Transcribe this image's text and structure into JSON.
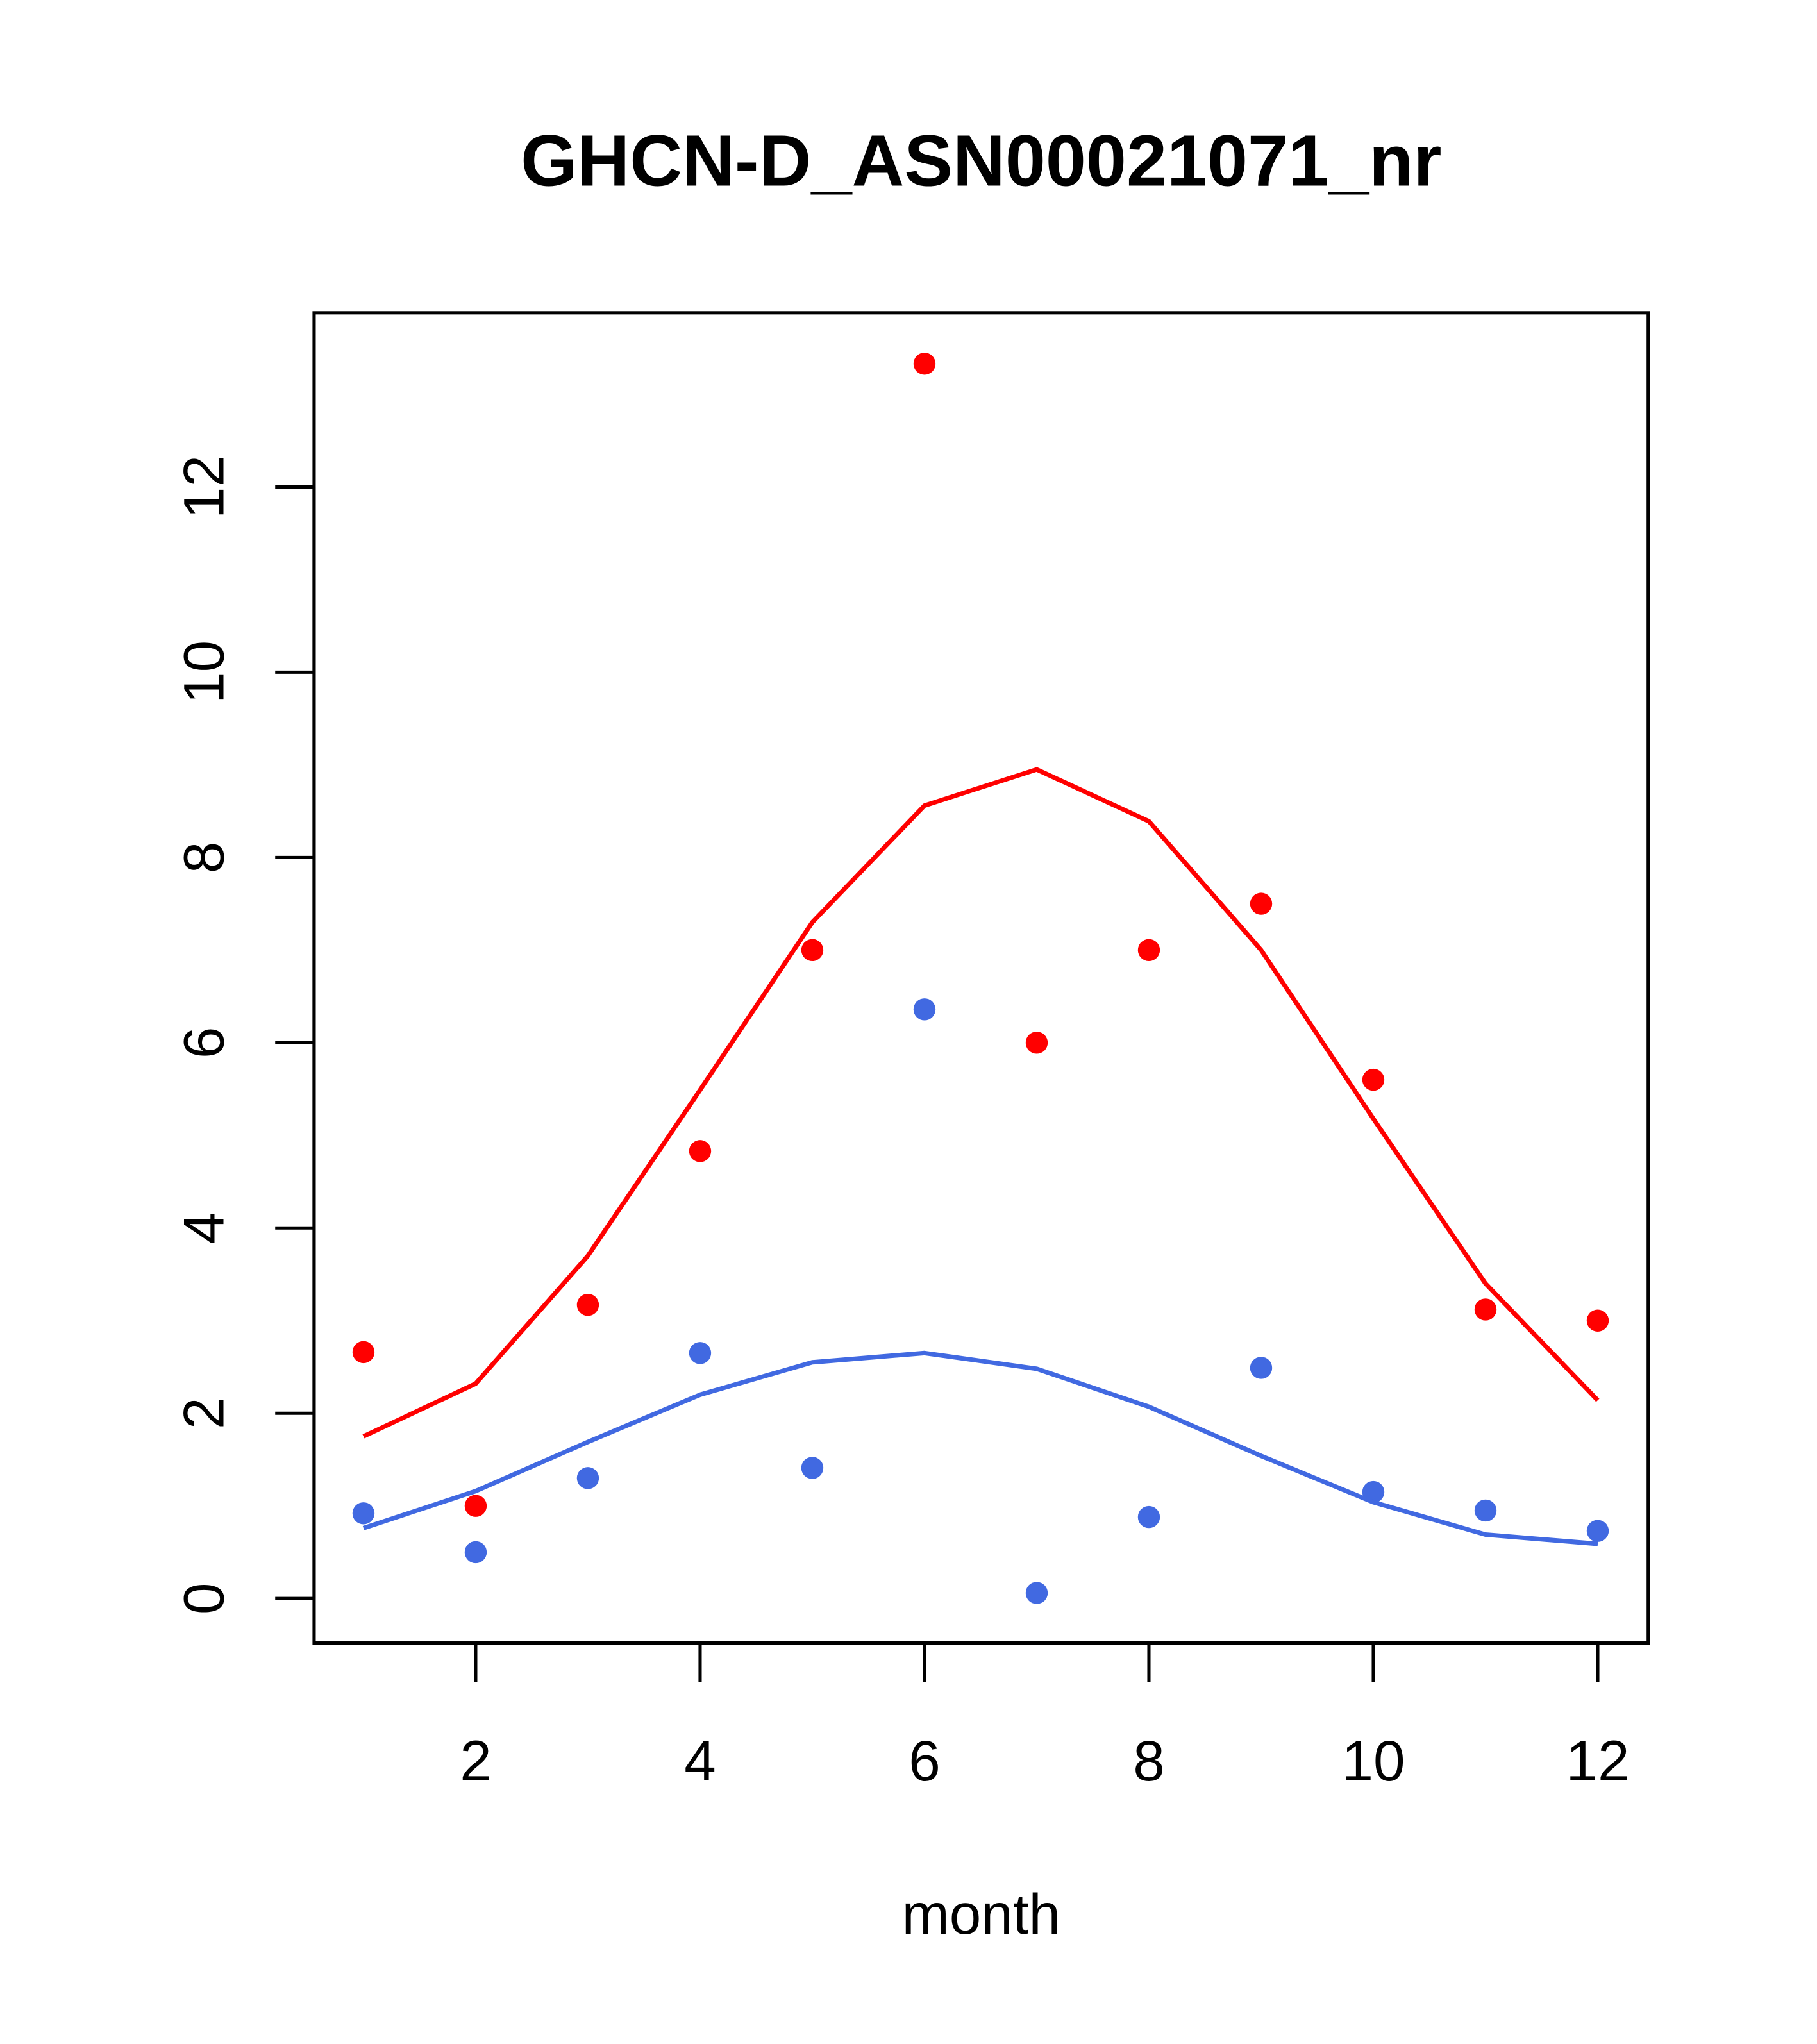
{
  "chart_data": {
    "type": "scatter",
    "title": "GHCN-D_ASN00021071_nr",
    "xlabel": "month",
    "ylabel": "",
    "xlim": [
      0.56,
      12.45
    ],
    "ylim": [
      -0.48,
      13.88
    ],
    "xticks": [
      2,
      4,
      6,
      8,
      10,
      12
    ],
    "xtick_labels": [
      "2",
      "4",
      "6",
      "8",
      "10",
      "12"
    ],
    "yticks": [
      0,
      2,
      4,
      6,
      8,
      10,
      12
    ],
    "ytick_labels": [
      "0",
      "2",
      "4",
      "6",
      "8",
      "10",
      "12"
    ],
    "grid": false,
    "x": [
      1,
      2,
      3,
      4,
      5,
      6,
      7,
      8,
      9,
      10,
      11,
      12
    ],
    "series": [
      {
        "name": "red points",
        "kind": "points",
        "color": "#ff0000",
        "values": [
          2.66,
          1.0,
          3.17,
          4.83,
          7.0,
          13.33,
          6.0,
          7.0,
          7.5,
          5.6,
          3.12,
          3.0
        ]
      },
      {
        "name": "red line",
        "kind": "line",
        "color": "#ff0000",
        "values": [
          1.75,
          2.32,
          3.7,
          5.49,
          7.3,
          8.56,
          8.95,
          8.39,
          7.0,
          5.18,
          3.4,
          2.14
        ]
      },
      {
        "name": "blue points",
        "kind": "points",
        "color": "#4169e1",
        "values": [
          0.92,
          0.5,
          1.3,
          2.65,
          1.41,
          6.36,
          0.06,
          0.88,
          2.49,
          1.15,
          0.95,
          0.73
        ]
      },
      {
        "name": "blue line",
        "kind": "line",
        "color": "#4169e1",
        "values": [
          0.76,
          1.16,
          1.69,
          2.2,
          2.55,
          2.65,
          2.48,
          2.07,
          1.54,
          1.04,
          0.69,
          0.59
        ]
      }
    ]
  }
}
